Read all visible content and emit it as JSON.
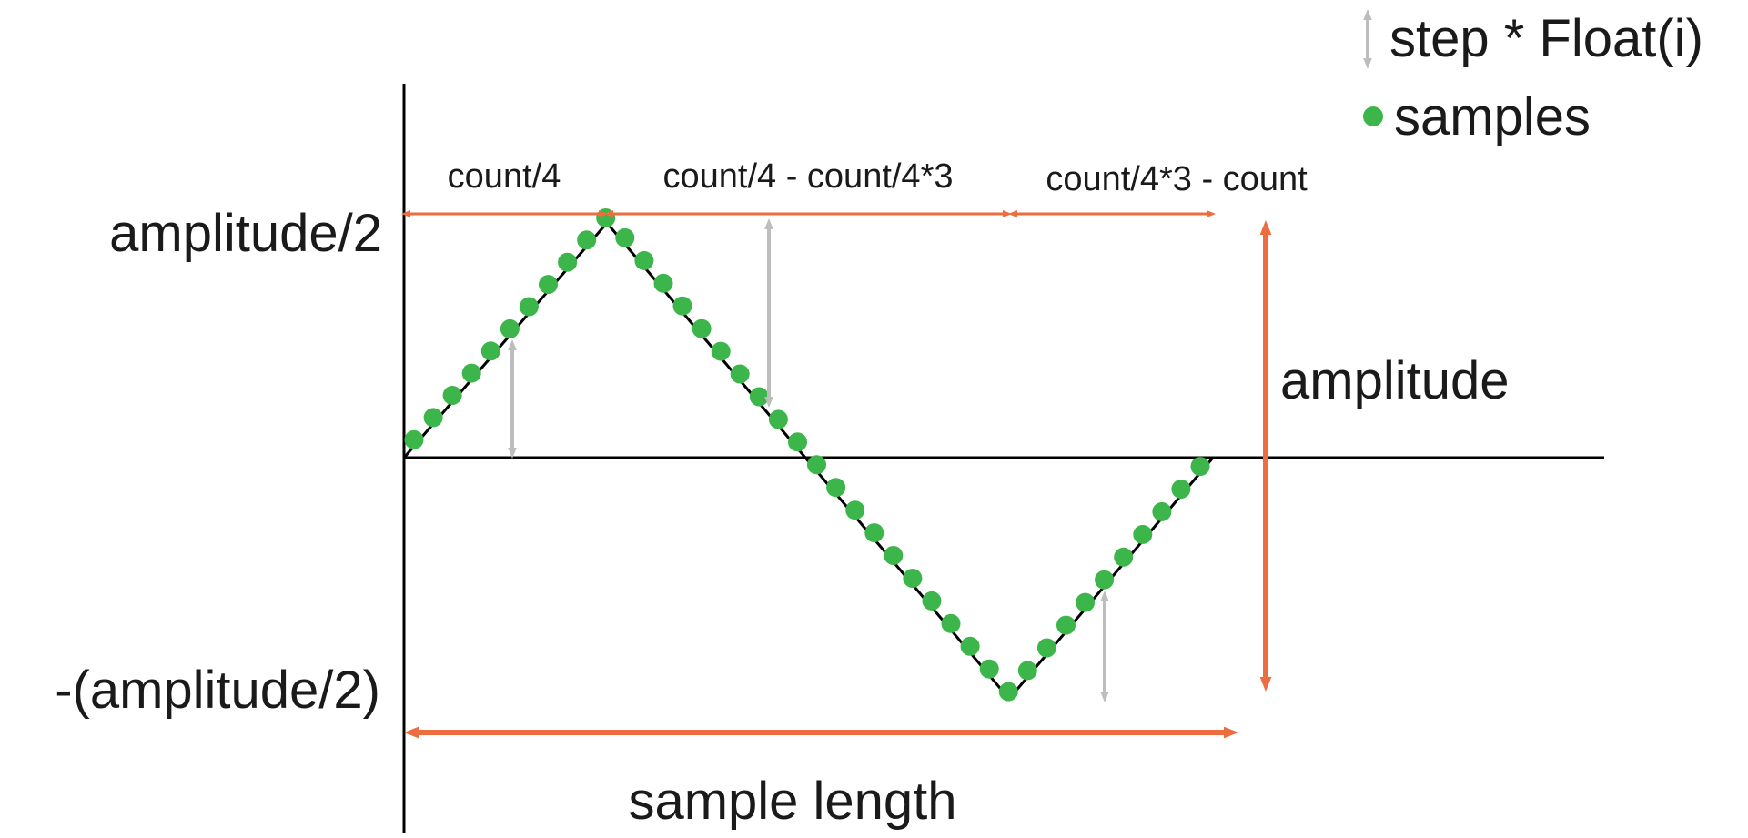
{
  "legend": {
    "step_label": "step * Float(i)",
    "samples_label": "samples"
  },
  "labels": {
    "amp_top": "amplitude/2",
    "amp_bottom": "-(amplitude/2)",
    "amplitude": "amplitude",
    "sample_length": "sample length"
  },
  "segments": {
    "first": "count/4",
    "second": "count/4 - count/4*3",
    "third": "count/4*3 - count"
  },
  "colors": {
    "sample_dot": "#3cb54a",
    "measure_arrow": "#ee6d3e",
    "step_arrow": "#bdbdbd",
    "axis": "#000000",
    "wave": "#000000"
  },
  "wave": {
    "shape": "triangle",
    "sample_count": 42
  }
}
